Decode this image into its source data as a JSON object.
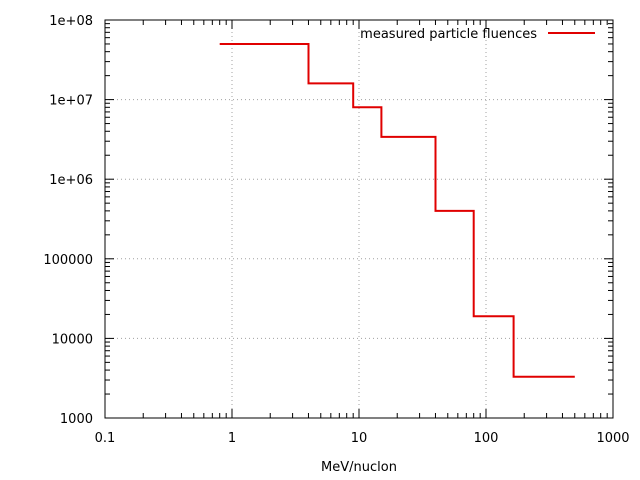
{
  "chart_data": {
    "type": "line",
    "step": true,
    "xscale": "log",
    "yscale": "log",
    "xlim": [
      0.1,
      1000
    ],
    "ylim": [
      1000,
      100000000
    ],
    "xlabel": "MeV/nuclon",
    "ylabel": "",
    "grid": true,
    "legend_position": "top-right",
    "x_ticks": [
      {
        "value": 0.1,
        "label": "0.1"
      },
      {
        "value": 1,
        "label": "1"
      },
      {
        "value": 10,
        "label": "10"
      },
      {
        "value": 100,
        "label": "100"
      },
      {
        "value": 1000,
        "label": "1000"
      }
    ],
    "y_ticks": [
      {
        "value": 1000,
        "label": "1000"
      },
      {
        "value": 10000,
        "label": "10000"
      },
      {
        "value": 100000,
        "label": "100000"
      },
      {
        "value": 1000000,
        "label": "1e+06"
      },
      {
        "value": 10000000,
        "label": "1e+07"
      },
      {
        "value": 100000000,
        "label": "1e+08"
      }
    ],
    "series": [
      {
        "name": "measured particle fluences",
        "color": "#e00000",
        "steps": [
          {
            "x_start": 0.8,
            "x_end": 4,
            "y": 50000000
          },
          {
            "x_start": 4,
            "x_end": 9,
            "y": 16000000
          },
          {
            "x_start": 9,
            "x_end": 15,
            "y": 8000000
          },
          {
            "x_start": 15,
            "x_end": 40,
            "y": 3400000
          },
          {
            "x_start": 40,
            "x_end": 80,
            "y": 400000
          },
          {
            "x_start": 80,
            "x_end": 165,
            "y": 19000
          },
          {
            "x_start": 165,
            "x_end": 500,
            "y": 3300
          }
        ]
      }
    ]
  }
}
